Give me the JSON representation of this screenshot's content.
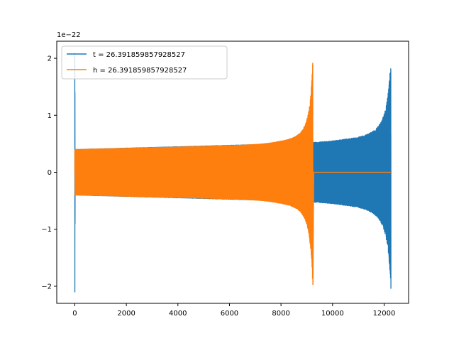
{
  "chart_data": {
    "type": "line",
    "title": "",
    "xlabel": "",
    "ylabel": "",
    "y_offset_label": "1e−22",
    "xlim": [
      -700,
      12950
    ],
    "ylim": [
      -2.3,
      2.3
    ],
    "xticks": [
      0,
      2000,
      4000,
      6000,
      8000,
      10000,
      12000
    ],
    "xtick_labels": [
      "0",
      "2000",
      "4000",
      "6000",
      "8000",
      "10000",
      "12000"
    ],
    "yticks": [
      -2,
      -1,
      0,
      1,
      2
    ],
    "ytick_labels": [
      "−2",
      "−1",
      "0",
      "1",
      "2"
    ],
    "grid": false,
    "legend_position": "top-left",
    "series": [
      {
        "name": "t = 26.391859857928527",
        "color": "#1f77b4",
        "description": "chirp waveform spanning x 0 to 12300; initial spike ±2.1 at x≈0, envelope grows from ±0.4 to ±0.6 then peaks at ±2.1 near x≈12270"
      },
      {
        "name": "h = 26.391859857928527",
        "color": "#ff7f0e",
        "description": "chirp waveform spanning x 0 to 9270, then flat at 0 until x≈12300; envelope grows from ±0.4 to peak ±2.1 near x≈9240"
      }
    ]
  }
}
